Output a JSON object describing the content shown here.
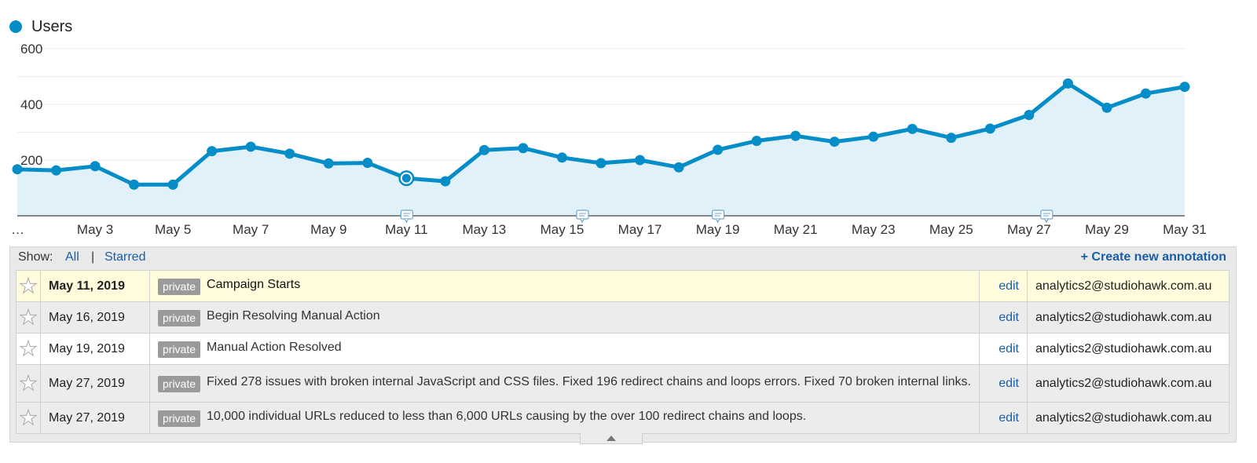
{
  "legend": {
    "label": "Users",
    "color": "#058dc7"
  },
  "chart_data": {
    "type": "area",
    "series": [
      {
        "name": "Users",
        "color": "#058dc7",
        "dates": [
          "May 1",
          "May 2",
          "May 3",
          "May 4",
          "May 5",
          "May 6",
          "May 7",
          "May 8",
          "May 9",
          "May 10",
          "May 11",
          "May 12",
          "May 13",
          "May 14",
          "May 15",
          "May 16",
          "May 17",
          "May 18",
          "May 19",
          "May 20",
          "May 21",
          "May 22",
          "May 23",
          "May 24",
          "May 25",
          "May 26",
          "May 27",
          "May 28",
          "May 29",
          "May 30",
          "May 31"
        ],
        "values": [
          167,
          163,
          178,
          112,
          112,
          232,
          248,
          223,
          188,
          190,
          135,
          124,
          236,
          243,
          209,
          189,
          200,
          174,
          237,
          269,
          287,
          266,
          284,
          312,
          280,
          313,
          362,
          475,
          388,
          439,
          463
        ]
      }
    ],
    "y_ticks": [
      "600",
      "400",
      "200"
    ],
    "y_tick_values": [
      600,
      400,
      200
    ],
    "ylim": [
      0,
      600
    ],
    "x_tick_labels": [
      "…",
      "May 3",
      "May 5",
      "May 7",
      "May 9",
      "May 11",
      "May 13",
      "May 15",
      "May 17",
      "May 19",
      "May 21",
      "May 23",
      "May 25",
      "May 27",
      "May 29",
      "May 31"
    ],
    "highlighted_point": "May 11",
    "annotation_dates": [
      "May 11",
      "May 16",
      "May 19",
      "May 27"
    ],
    "grid": true,
    "fill_color": "#e1f1f9"
  },
  "annotations": {
    "show_label": "Show:",
    "filter_all": "All",
    "filter_separator": "|",
    "filter_starred": "Starred",
    "create_link": "+ Create new annotation",
    "rows": [
      {
        "date": "May 11, 2019",
        "badge": "private",
        "text": "Campaign Starts",
        "edit": "edit",
        "email": "analytics2@studiohawk.com.au"
      },
      {
        "date": "May 16, 2019",
        "badge": "private",
        "text": "Begin Resolving Manual Action",
        "edit": "edit",
        "email": "analytics2@studiohawk.com.au"
      },
      {
        "date": "May 19, 2019",
        "badge": "private",
        "text": "Manual Action Resolved",
        "edit": "edit",
        "email": "analytics2@studiohawk.com.au"
      },
      {
        "date": "May 27, 2019",
        "badge": "private",
        "text": "Fixed 278 issues with broken internal JavaScript and CSS files. Fixed 196 redirect chains and loops errors. Fixed 70 broken internal links.",
        "edit": "edit",
        "email": "analytics2@studiohawk.com.au"
      },
      {
        "date": "May 27, 2019",
        "badge": "private",
        "text": "10,000 individual URLs reduced to less than 6,000 URLs causing by the over 100 redirect chains and loops.",
        "edit": "edit",
        "email": "analytics2@studiohawk.com.au"
      }
    ]
  }
}
